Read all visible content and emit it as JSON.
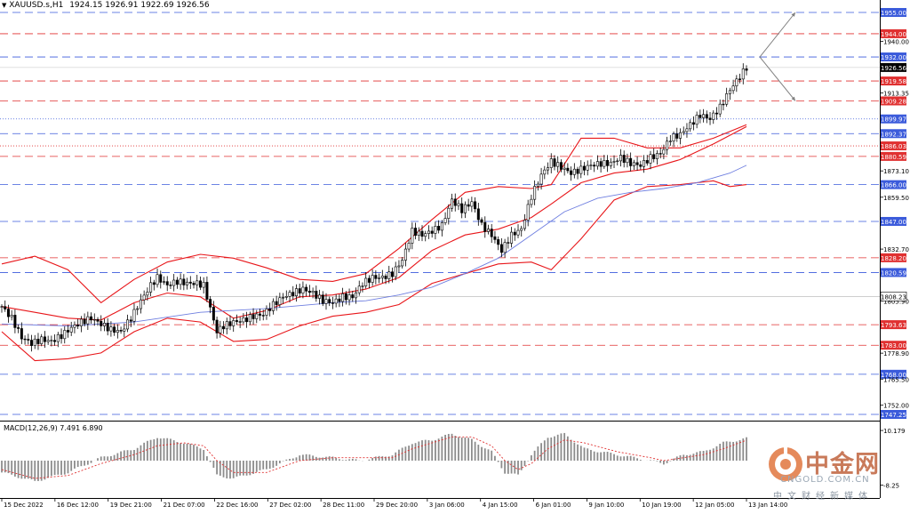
{
  "header": {
    "symbol": "XAUUSD.s,H1",
    "ohlc": "1924.15 1926.91 1922.69 1926.56",
    "menu_arrow": "triangle-down-icon"
  },
  "macd_label": "MACD(12,26,9) 7.491 6.890",
  "watermark": {
    "title": "中金网",
    "url": "CNGOLD.COM.CN",
    "slogan": "中文财经新媒体",
    "logo_icon": "cngold-logo-icon",
    "colors": {
      "logo": "#e58a5b",
      "title": "#c97a5a"
    }
  },
  "colors": {
    "blue_level": "#3b5bdb",
    "red_level": "#e03131",
    "bollinger": "#e8161a",
    "moving_average": "#6f7fe0",
    "candles": "#000000",
    "macd_histogram": "#8c8c8c",
    "macd_signal": "#e03131",
    "background": "#ffffff"
  },
  "chart_data": [
    {
      "type": "candlestick",
      "symbol": "XAUUSD.s",
      "timeframe": "H1",
      "ylim": [
        1743,
        1962
      ],
      "y_ticks": [
        1940.0,
        1913.35,
        1873.1,
        1859.5,
        1832.7,
        1805.9,
        1778.9,
        1765.5,
        1752.0
      ],
      "x_ticks": [
        "15 Dec 2022",
        "16 Dec 12:00",
        "19 Dec 21:00",
        "21 Dec 07:00",
        "22 Dec 16:00",
        "27 Dec 02:00",
        "28 Dec 11:00",
        "29 Dec 20:00",
        "3 Jan 06:00",
        "4 Jan 15:00",
        "6 Jan 01:00",
        "9 Jan 10:00",
        "10 Jan 19:00",
        "12 Jan 05:00",
        "13 Jan 14:00"
      ],
      "current_price": 1926.56,
      "price_box": 1808.23,
      "levels": [
        {
          "value": 1955.0,
          "style": "blue"
        },
        {
          "value": 1944.0,
          "style": "red"
        },
        {
          "value": 1932.0,
          "style": "blue"
        },
        {
          "value": 1919.58,
          "style": "red"
        },
        {
          "value": 1909.28,
          "style": "red"
        },
        {
          "value": 1899.97,
          "style": "blue-dotted"
        },
        {
          "value": 1892.37,
          "style": "blue"
        },
        {
          "value": 1886.03,
          "style": "red-dotted"
        },
        {
          "value": 1880.59,
          "style": "red"
        },
        {
          "value": 1866.0,
          "style": "blue"
        },
        {
          "value": 1847.0,
          "style": "blue"
        },
        {
          "value": 1828.2,
          "style": "red"
        },
        {
          "value": 1820.59,
          "style": "blue"
        },
        {
          "value": 1793.63,
          "style": "red"
        },
        {
          "value": 1783.0,
          "style": "red"
        },
        {
          "value": 1768.0,
          "style": "blue"
        },
        {
          "value": 1747.25,
          "style": "blue"
        }
      ],
      "price_path": [
        [
          0,
          1803
        ],
        [
          3,
          1797
        ],
        [
          6,
          1787
        ],
        [
          9,
          1784
        ],
        [
          12,
          1786
        ],
        [
          15,
          1785
        ],
        [
          18,
          1788
        ],
        [
          21,
          1792
        ],
        [
          24,
          1795
        ],
        [
          27,
          1797
        ],
        [
          30,
          1794
        ],
        [
          33,
          1791
        ],
        [
          36,
          1790
        ],
        [
          39,
          1797
        ],
        [
          42,
          1806
        ],
        [
          45,
          1814
        ],
        [
          47,
          1818
        ],
        [
          50,
          1814
        ],
        [
          53,
          1816
        ],
        [
          56,
          1815
        ],
        [
          59,
          1815
        ],
        [
          61,
          1814
        ],
        [
          63,
          1802
        ],
        [
          65,
          1790
        ],
        [
          67,
          1793
        ],
        [
          70,
          1795
        ],
        [
          73,
          1796
        ],
        [
          76,
          1798
        ],
        [
          79,
          1799
        ],
        [
          82,
          1804
        ],
        [
          85,
          1808
        ],
        [
          88,
          1810
        ],
        [
          91,
          1812
        ],
        [
          94,
          1810
        ],
        [
          97,
          1806
        ],
        [
          100,
          1805
        ],
        [
          103,
          1808
        ],
        [
          106,
          1808
        ],
        [
          109,
          1815
        ],
        [
          112,
          1818
        ],
        [
          115,
          1818
        ],
        [
          118,
          1820
        ],
        [
          121,
          1827
        ],
        [
          124,
          1842
        ],
        [
          127,
          1840
        ],
        [
          130,
          1842
        ],
        [
          133,
          1845
        ],
        [
          136,
          1858
        ],
        [
          139,
          1853
        ],
        [
          142,
          1857
        ],
        [
          145,
          1845
        ],
        [
          148,
          1840
        ],
        [
          151,
          1832
        ],
        [
          154,
          1840
        ],
        [
          157,
          1843
        ],
        [
          160,
          1860
        ],
        [
          163,
          1871
        ],
        [
          166,
          1878
        ],
        [
          169,
          1875
        ],
        [
          172,
          1872
        ],
        [
          175,
          1874
        ],
        [
          178,
          1876
        ],
        [
          181,
          1877
        ],
        [
          184,
          1877
        ],
        [
          187,
          1880
        ],
        [
          190,
          1877
        ],
        [
          193,
          1876
        ],
        [
          196,
          1880
        ],
        [
          199,
          1882
        ],
        [
          202,
          1890
        ],
        [
          205,
          1892
        ],
        [
          208,
          1897
        ],
        [
          211,
          1902
        ],
        [
          214,
          1900
        ],
        [
          217,
          1906
        ],
        [
          220,
          1915
        ],
        [
          223,
          1922
        ],
        [
          225,
          1926.56
        ]
      ],
      "bollinger_upper": [
        [
          0,
          1825
        ],
        [
          10,
          1829
        ],
        [
          20,
          1822
        ],
        [
          30,
          1805
        ],
        [
          40,
          1817
        ],
        [
          50,
          1826
        ],
        [
          60,
          1830
        ],
        [
          70,
          1828
        ],
        [
          80,
          1823
        ],
        [
          90,
          1817
        ],
        [
          100,
          1816
        ],
        [
          110,
          1820
        ],
        [
          120,
          1833
        ],
        [
          130,
          1848
        ],
        [
          140,
          1862
        ],
        [
          150,
          1865
        ],
        [
          160,
          1864
        ],
        [
          166,
          1866
        ],
        [
          175,
          1890
        ],
        [
          185,
          1890
        ],
        [
          195,
          1885
        ],
        [
          205,
          1885
        ],
        [
          215,
          1890
        ],
        [
          225,
          1897
        ]
      ],
      "bollinger_middle": [
        [
          0,
          1803
        ],
        [
          10,
          1800
        ],
        [
          20,
          1797
        ],
        [
          30,
          1796
        ],
        [
          40,
          1805
        ],
        [
          50,
          1810
        ],
        [
          60,
          1808
        ],
        [
          70,
          1797
        ],
        [
          80,
          1801
        ],
        [
          90,
          1808
        ],
        [
          100,
          1809
        ],
        [
          110,
          1812
        ],
        [
          120,
          1818
        ],
        [
          130,
          1832
        ],
        [
          140,
          1840
        ],
        [
          150,
          1843
        ],
        [
          160,
          1849
        ],
        [
          166,
          1856
        ],
        [
          175,
          1867
        ],
        [
          185,
          1872
        ],
        [
          195,
          1874
        ],
        [
          205,
          1879
        ],
        [
          215,
          1887
        ],
        [
          225,
          1896
        ]
      ],
      "bollinger_lower": [
        [
          0,
          1790
        ],
        [
          10,
          1775
        ],
        [
          20,
          1776
        ],
        [
          30,
          1779
        ],
        [
          40,
          1790
        ],
        [
          50,
          1797
        ],
        [
          60,
          1795
        ],
        [
          70,
          1785
        ],
        [
          80,
          1786
        ],
        [
          90,
          1793
        ],
        [
          100,
          1798
        ],
        [
          110,
          1800
        ],
        [
          120,
          1804
        ],
        [
          130,
          1815
        ],
        [
          140,
          1820
        ],
        [
          150,
          1825
        ],
        [
          160,
          1826
        ],
        [
          166,
          1822
        ],
        [
          175,
          1838
        ],
        [
          185,
          1858
        ],
        [
          195,
          1865
        ],
        [
          205,
          1866
        ],
        [
          215,
          1868
        ],
        [
          220,
          1865
        ],
        [
          225,
          1866
        ]
      ],
      "moving_average": [
        [
          0,
          1794
        ],
        [
          20,
          1793
        ],
        [
          40,
          1795
        ],
        [
          60,
          1800
        ],
        [
          80,
          1802
        ],
        [
          100,
          1805
        ],
        [
          110,
          1806
        ],
        [
          120,
          1809
        ],
        [
          130,
          1813
        ],
        [
          140,
          1820
        ],
        [
          150,
          1828
        ],
        [
          160,
          1840
        ],
        [
          170,
          1852
        ],
        [
          180,
          1859
        ],
        [
          190,
          1862
        ],
        [
          200,
          1864
        ],
        [
          210,
          1867
        ],
        [
          220,
          1872
        ],
        [
          225,
          1876
        ]
      ],
      "arrows": [
        {
          "from": [
            230,
            1932
          ],
          "to": [
            240,
            1955
          ]
        },
        {
          "from": [
            230,
            1932
          ],
          "to": [
            240,
            1909.28
          ]
        }
      ]
    },
    {
      "type": "bar",
      "name": "MACD(12,26,9)",
      "macd": 7.491,
      "signal": 6.89,
      "y_ticks": [
        10.179,
        -8.25
      ],
      "ylim": [
        -12,
        12
      ],
      "histogram": [
        [
          0,
          -4
        ],
        [
          10,
          -7
        ],
        [
          20,
          -4
        ],
        [
          30,
          1
        ],
        [
          40,
          4
        ],
        [
          47,
          8
        ],
        [
          55,
          6
        ],
        [
          61,
          4
        ],
        [
          65,
          -5
        ],
        [
          70,
          -6
        ],
        [
          80,
          -3
        ],
        [
          90,
          2
        ],
        [
          100,
          1
        ],
        [
          108,
          0
        ],
        [
          118,
          2
        ],
        [
          124,
          6
        ],
        [
          130,
          7
        ],
        [
          136,
          9
        ],
        [
          142,
          7
        ],
        [
          148,
          3
        ],
        [
          152,
          -4
        ],
        [
          156,
          -5
        ],
        [
          160,
          2
        ],
        [
          165,
          8
        ],
        [
          170,
          9
        ],
        [
          176,
          4
        ],
        [
          186,
          2
        ],
        [
          196,
          0
        ],
        [
          200,
          -1
        ],
        [
          206,
          2
        ],
        [
          212,
          3
        ],
        [
          218,
          6
        ],
        [
          225,
          7.5
        ]
      ],
      "signal_path": [
        [
          0,
          -3
        ],
        [
          10,
          -6
        ],
        [
          20,
          -5
        ],
        [
          30,
          -1
        ],
        [
          40,
          2
        ],
        [
          47,
          5
        ],
        [
          55,
          6
        ],
        [
          61,
          5
        ],
        [
          65,
          0
        ],
        [
          70,
          -4
        ],
        [
          80,
          -4
        ],
        [
          90,
          0
        ],
        [
          100,
          1
        ],
        [
          108,
          1
        ],
        [
          118,
          1
        ],
        [
          124,
          4
        ],
        [
          130,
          6
        ],
        [
          136,
          8
        ],
        [
          142,
          8
        ],
        [
          148,
          5
        ],
        [
          152,
          0
        ],
        [
          156,
          -3
        ],
        [
          160,
          -1
        ],
        [
          165,
          4
        ],
        [
          170,
          7
        ],
        [
          176,
          6
        ],
        [
          186,
          3
        ],
        [
          196,
          1
        ],
        [
          200,
          0
        ],
        [
          206,
          1
        ],
        [
          212,
          2
        ],
        [
          218,
          4
        ],
        [
          225,
          6.89
        ]
      ]
    }
  ]
}
